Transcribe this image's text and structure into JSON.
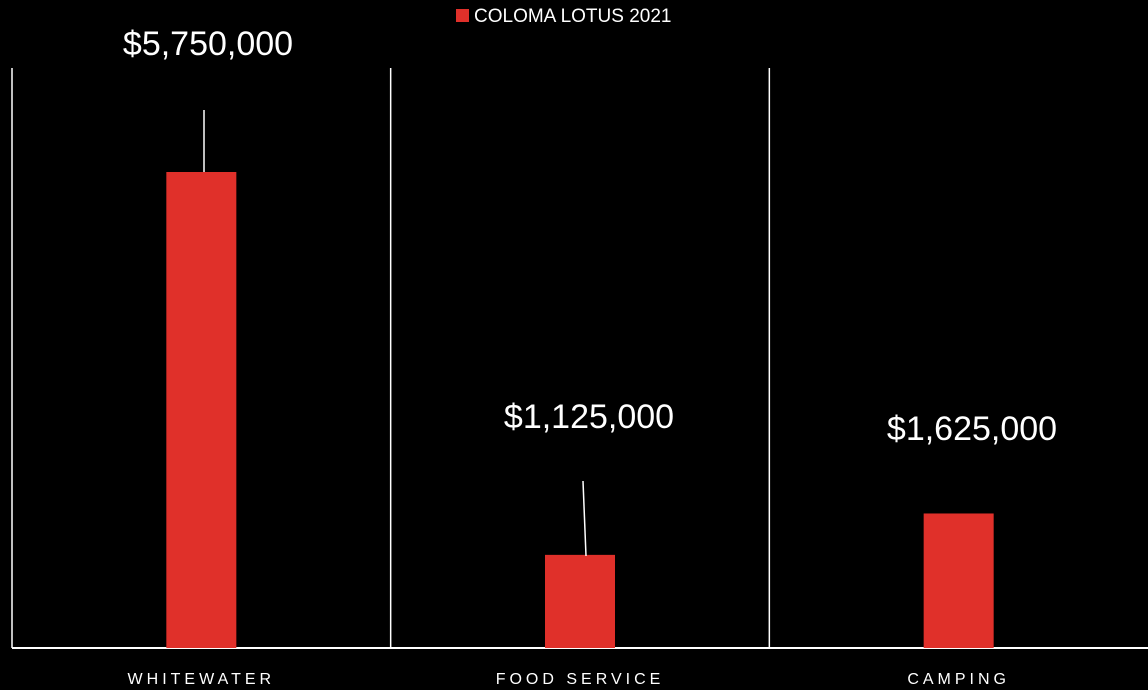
{
  "chart_data": {
    "type": "bar",
    "categories": [
      "WHITEWATER",
      "FOOD SERVICE",
      "CAMPING"
    ],
    "series": [
      {
        "name": "COLOMA LOTUS 2021",
        "values": [
          5750000,
          1125000,
          1625000
        ]
      }
    ],
    "data_labels": [
      "$5,750,000",
      "$1,125,000",
      "$1,625,000"
    ],
    "colors": {
      "bar": "#e0302a",
      "background": "#000000",
      "text": "#ffffff",
      "lines": "#ffffff"
    },
    "grid": "vertical category separators",
    "legend_position": "top-center"
  }
}
